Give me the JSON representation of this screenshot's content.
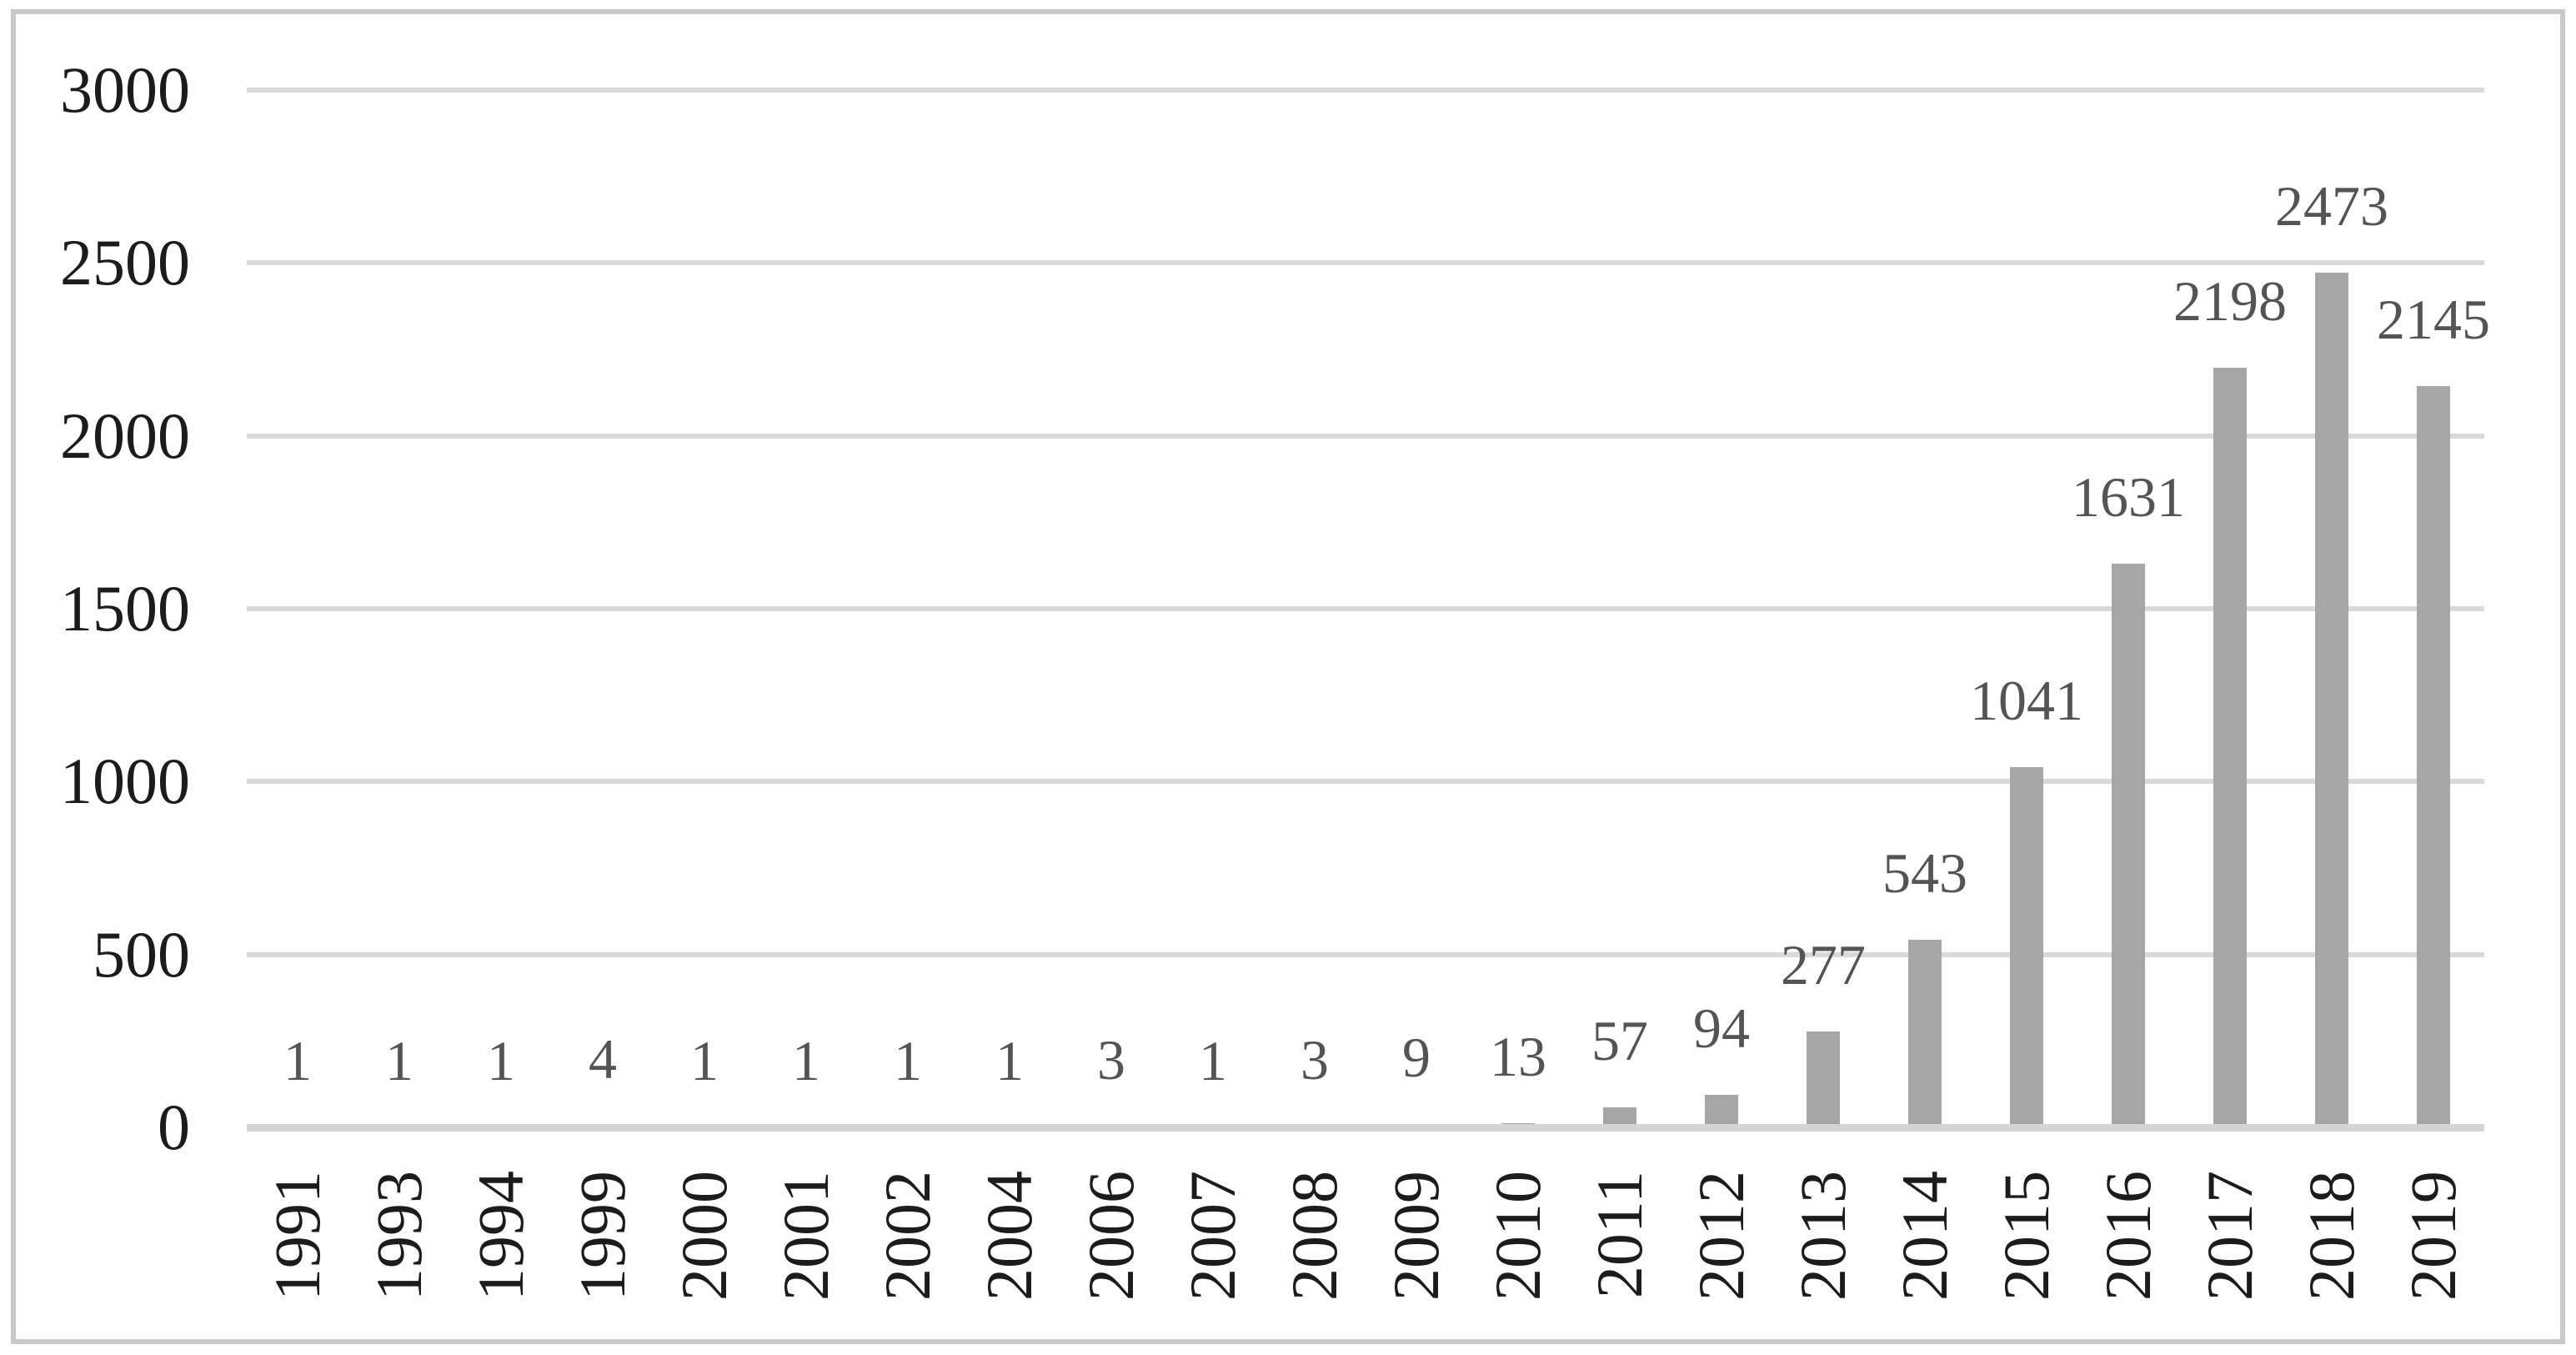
{
  "chart_data": {
    "type": "bar",
    "title": "",
    "xlabel": "",
    "ylabel": "",
    "categories": [
      "1991",
      "1993",
      "1994",
      "1999",
      "2000",
      "2001",
      "2002",
      "2004",
      "2006",
      "2007",
      "2008",
      "2009",
      "2010",
      "2011",
      "2012",
      "2013",
      "2014",
      "2015",
      "2016",
      "2017",
      "2018",
      "2019"
    ],
    "values": [
      1,
      1,
      1,
      4,
      1,
      1,
      1,
      1,
      3,
      1,
      3,
      9,
      13,
      57,
      94,
      277,
      543,
      1041,
      1631,
      2198,
      2473,
      2145
    ],
    "data_labels_shown": true,
    "yticks": [
      0,
      500,
      1000,
      1500,
      2000,
      2500,
      3000
    ],
    "ylim": [
      0,
      3000
    ],
    "gridlines": "horizontal",
    "legend": null,
    "bar_orientation": "vertical",
    "x_tick_rotation_deg": -90,
    "colors": {
      "background": "#ffffff",
      "bar": "#a6a6a6",
      "data_label": "#545454",
      "axis_label": "#1c1c1c",
      "gridline": "#d9d9d9",
      "axis_line": "#d4d4d4",
      "figure_border": "#c9c9c9"
    }
  }
}
